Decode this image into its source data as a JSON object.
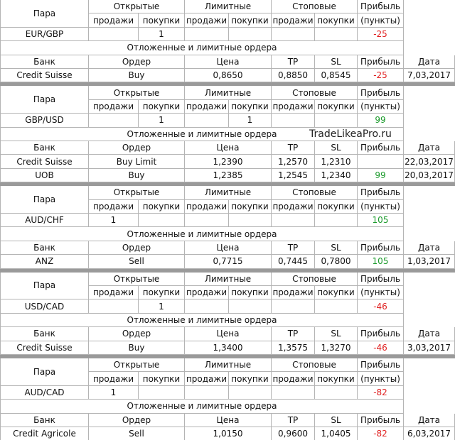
{
  "watermark": "TradeLikeaPro.ru",
  "blocks": [
    {
      "header": {
        "pair_label": "Пара",
        "open": "Открытые",
        "limit": "Лимитные",
        "stop": "Стоповые",
        "profit": "Прибыль",
        "sub": [
          "продажи",
          "покупки",
          "продажи",
          "покупки",
          "продажи",
          "покупки",
          "(пункты)"
        ]
      },
      "pair": {
        "name": "EUR/GBP",
        "cells": [
          null,
          "1",
          null,
          null,
          null,
          null
        ],
        "profit": "-25"
      },
      "orders_title": "Отложенные и лимитные ордера",
      "order_header": [
        "Банк",
        "Ордер",
        "Цена",
        "TP",
        "SL",
        "Прибыль",
        "Дата"
      ],
      "orders": [
        [
          "Credit Suisse",
          "Buy",
          "0,8650",
          "0,8850",
          "0,8545",
          "-25",
          "7,03,2017"
        ]
      ]
    },
    {
      "header": {
        "pair_label": "Пара",
        "open": "Открытые",
        "limit": "Лимитные",
        "stop": "Стоповые",
        "profit": "Прибыль",
        "sub": [
          "продажи",
          "покупки",
          "продажи",
          "покупки",
          "продажи",
          "покупки",
          "(пункты)"
        ]
      },
      "pair": {
        "name": "GBP/USD",
        "cells": [
          null,
          "1",
          null,
          "1",
          null,
          null
        ],
        "profit": "99"
      },
      "orders_title": "Отложенные и лимитные ордера",
      "order_header": [
        "Банк",
        "Ордер",
        "Цена",
        "TP",
        "SL",
        "Прибыль",
        "Дата"
      ],
      "orders": [
        [
          "Credit Suisse",
          "Buy Limit",
          "1,2390",
          "1,2570",
          "1,2310",
          null,
          "22,03,2017"
        ],
        [
          "UOB",
          "Buy",
          "1,2385",
          "1,2545",
          "1,2340",
          "99",
          "20,03,2017"
        ]
      ]
    },
    {
      "header": {
        "pair_label": "Пара",
        "open": "Открытые",
        "limit": "Лимитные",
        "stop": "Стоповые",
        "profit": "Прибыль",
        "sub": [
          "продажи",
          "покупки",
          "продажи",
          "покупки",
          "продажи",
          "покупки",
          "(пункты)"
        ]
      },
      "pair": {
        "name": "AUD/CHF",
        "cells": [
          "1",
          null,
          null,
          null,
          null,
          null
        ],
        "profit": "105"
      },
      "orders_title": "Отложенные и лимитные ордера",
      "order_header": [
        "Банк",
        "Ордер",
        "Цена",
        "TP",
        "SL",
        "Прибыль",
        "Дата"
      ],
      "orders": [
        [
          "ANZ",
          "Sell",
          "0,7715",
          "0,7445",
          "0,7800",
          "105",
          "1,03,2017"
        ]
      ]
    },
    {
      "header": {
        "pair_label": "Пара",
        "open": "Открытые",
        "limit": "Лимитные",
        "stop": "Стоповые",
        "profit": "Прибыль",
        "sub": [
          "продажи",
          "покупки",
          "продажи",
          "покупки",
          "продажи",
          "покупки",
          "(пункты)"
        ]
      },
      "pair": {
        "name": "USD/CAD",
        "cells": [
          null,
          "1",
          null,
          null,
          null,
          null
        ],
        "profit": "-46"
      },
      "orders_title": "Отложенные и лимитные ордера",
      "order_header": [
        "Банк",
        "Ордер",
        "Цена",
        "TP",
        "SL",
        "Прибыль",
        "Дата"
      ],
      "orders": [
        [
          "Credit Suisse",
          "Buy",
          "1,3400",
          "1,3575",
          "1,3270",
          "-46",
          "3,03,2017"
        ]
      ]
    },
    {
      "header": {
        "pair_label": "Пара",
        "open": "Открытые",
        "limit": "Лимитные",
        "stop": "Стоповые",
        "profit": "Прибыль",
        "sub": [
          "продажи",
          "покупки",
          "продажи",
          "покупки",
          "продажи",
          "покупки",
          "(пункты)"
        ]
      },
      "pair": {
        "name": "AUD/CAD",
        "cells": [
          "1",
          null,
          null,
          null,
          null,
          null
        ],
        "profit": "-82"
      },
      "orders_title": "Отложенные и лимитные ордера",
      "order_header": [
        "Банк",
        "Ордер",
        "Цена",
        "TP",
        "SL",
        "Прибыль",
        "Дата"
      ],
      "orders": [
        [
          "Credit Agricole",
          "Sell",
          "1,0150",
          "0,9600",
          "1,0405",
          "-82",
          "6,03,2017"
        ]
      ]
    }
  ]
}
